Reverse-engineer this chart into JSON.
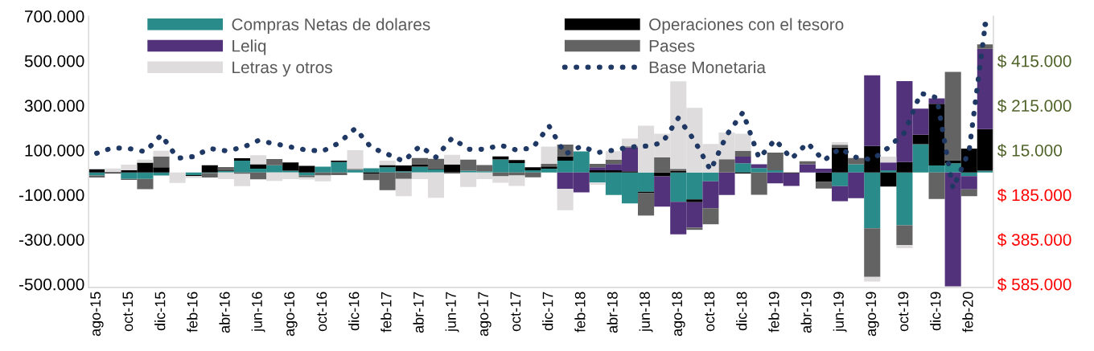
{
  "chart_data": {
    "type": "bar",
    "stacked": true,
    "legend": "top",
    "grid": false,
    "categories": [
      "ago-15",
      null,
      "oct-15",
      null,
      "dic-15",
      null,
      "feb-16",
      null,
      "abr-16",
      null,
      "jun-16",
      null,
      "ago-16",
      null,
      "oct-16",
      null,
      "dic-16",
      null,
      "feb-17",
      null,
      "abr-17",
      null,
      "jun-17",
      null,
      "ago-17",
      null,
      "oct-17",
      null,
      "dic-17",
      null,
      "feb-18",
      null,
      "abr-18",
      null,
      "jun-18",
      null,
      "ago-18",
      null,
      "oct-18",
      null,
      "dic-18",
      null,
      "feb-19",
      null,
      "abr-19",
      null,
      "jun-19",
      null,
      "ago-19",
      null,
      "oct-19",
      null,
      "dic-19",
      null,
      "feb-20",
      null
    ],
    "ylim": [
      -515000,
      700000
    ],
    "yticks": [
      {
        "value": -500000,
        "label": "-500.000"
      },
      {
        "value": -300000,
        "label": "-300.000"
      },
      {
        "value": -100000,
        "label": "-100.000"
      },
      {
        "value": 100000,
        "label": "100.000"
      },
      {
        "value": 300000,
        "label": "300.000"
      },
      {
        "value": 500000,
        "label": "500.000"
      },
      {
        "value": 700000,
        "label": "700.000"
      }
    ],
    "y2lim": [
      -600000,
      615000
    ],
    "y2ticks": [
      {
        "value": -585000,
        "label": "$ 585.000"
      },
      {
        "value": -385000,
        "label": "$ 385.000"
      },
      {
        "value": -185000,
        "label": "$ 185.000"
      },
      {
        "value": 15000,
        "label": "$ 15.000"
      },
      {
        "value": 215000,
        "label": "$ 215.000"
      },
      {
        "value": 415000,
        "label": "$ 415.000"
      }
    ],
    "series": [
      {
        "name": "Compras Netas de dolares",
        "color": "#2a8c8a",
        "values": [
          -14000,
          0,
          -29000,
          -29000,
          -14000,
          0,
          -12000,
          -3000,
          7000,
          53000,
          17000,
          32000,
          8000,
          -14000,
          26000,
          47000,
          12000,
          19000,
          23000,
          5000,
          26000,
          14000,
          0,
          8000,
          5000,
          58000,
          42000,
          10000,
          17000,
          53000,
          94000,
          -45000,
          -101000,
          -139000,
          -86000,
          0,
          -131000,
          -121000,
          -40000,
          0,
          41000,
          20000,
          10000,
          null,
          0,
          0,
          -61000,
          37000,
          -250000,
          10000,
          -237000,
          127000,
          31000,
          41000,
          -16000,
          8000
        ]
      },
      {
        "name": "Operaciones con el tesoro",
        "color": "#000000",
        "values": [
          14000,
          -4000,
          10000,
          44000,
          23000,
          0,
          -4000,
          32000,
          3000,
          11000,
          20000,
          0,
          37000,
          30000,
          0,
          6000,
          0,
          -5000,
          10000,
          26000,
          11000,
          5000,
          36000,
          0,
          0,
          14000,
          14000,
          13000,
          10000,
          19000,
          0,
          10000,
          10000,
          5000,
          -7000,
          -17000,
          8000,
          -12000,
          0,
          0,
          -5000,
          0,
          0,
          -4000,
          0,
          -42000,
          111000,
          0,
          119000,
          -63000,
          47000,
          42000,
          276000,
          14000,
          107000,
          186000
        ]
      },
      {
        "name": "Leliq",
        "color": "#52327a",
        "values": [
          null,
          null,
          0,
          0,
          0,
          null,
          0,
          0,
          0,
          0,
          0,
          0,
          0,
          0,
          0,
          0,
          0,
          0,
          0,
          0,
          0,
          0,
          0,
          0,
          0,
          0,
          0,
          0,
          0,
          -74000,
          -89000,
          13000,
          28000,
          107000,
          0,
          -136000,
          -146000,
          -114000,
          -120000,
          -101000,
          30000,
          17000,
          -49000,
          -56000,
          37000,
          17000,
          -68000,
          -115000,
          316000,
          35000,
          362000,
          117000,
          25000,
          -510000,
          -60000,
          360000
        ]
      },
      {
        "name": "Pases",
        "color": "#636363",
        "values": [
          -9000,
          3000,
          -4000,
          -46000,
          48000,
          0,
          0,
          -20000,
          14000,
          -6000,
          -31000,
          28000,
          0,
          -8000,
          -14000,
          -12000,
          4000,
          -29000,
          -79000,
          -29000,
          28000,
          42000,
          -5000,
          49000,
          28000,
          -17000,
          -14000,
          -22000,
          12000,
          53000,
          0,
          16000,
          19000,
          5000,
          -100000,
          67000,
          8000,
          -10000,
          -72000,
          59000,
          26000,
          -100000,
          79000,
          0,
          13000,
          -30000,
          13000,
          28000,
          -218000,
          0,
          -88000,
          0,
          -119000,
          395000,
          -30000,
          20000
        ]
      },
      {
        "name": "Letras y otros",
        "color": "#dedcdc",
        "values": [
          0,
          15000,
          25000,
          13000,
          26000,
          -47000,
          -8000,
          0,
          -30000,
          -55000,
          40000,
          -38000,
          -30000,
          -10000,
          -26000,
          0,
          84000,
          0,
          20000,
          -77000,
          -30000,
          -113000,
          43000,
          -65000,
          -30000,
          -29000,
          -46000,
          0,
          77000,
          -95000,
          0,
          -10000,
          38000,
          35000,
          209000,
          106000,
          392000,
          289000,
          128000,
          120000,
          76000,
          0,
          0,
          0,
          0,
          0,
          12000,
          0,
          -20000,
          26000,
          -14000,
          0,
          0,
          0,
          0,
          0
        ]
      },
      {
        "name": "Base Monetaria",
        "type": "line",
        "axis": "y2",
        "line_style": "dotted",
        "color": "#1f3864",
        "values": [
          1000,
          26000,
          22000,
          8000,
          83000,
          -21000,
          -14000,
          22000,
          12000,
          26000,
          58000,
          44000,
          29000,
          15000,
          11000,
          47000,
          112000,
          26000,
          -3000,
          -35000,
          33000,
          -17000,
          69000,
          19000,
          19000,
          37000,
          15000,
          26000,
          123000,
          -3000,
          33000,
          4000,
          15000,
          29000,
          33000,
          47000,
          159000,
          58000,
          -75000,
          83000,
          184000,
          -21000,
          62000,
          -24000,
          47000,
          -32000,
          22000,
          -17000,
          -28000,
          26000,
          94000,
          270000,
          250000,
          -157000,
          11000,
          578000
        ]
      }
    ]
  }
}
